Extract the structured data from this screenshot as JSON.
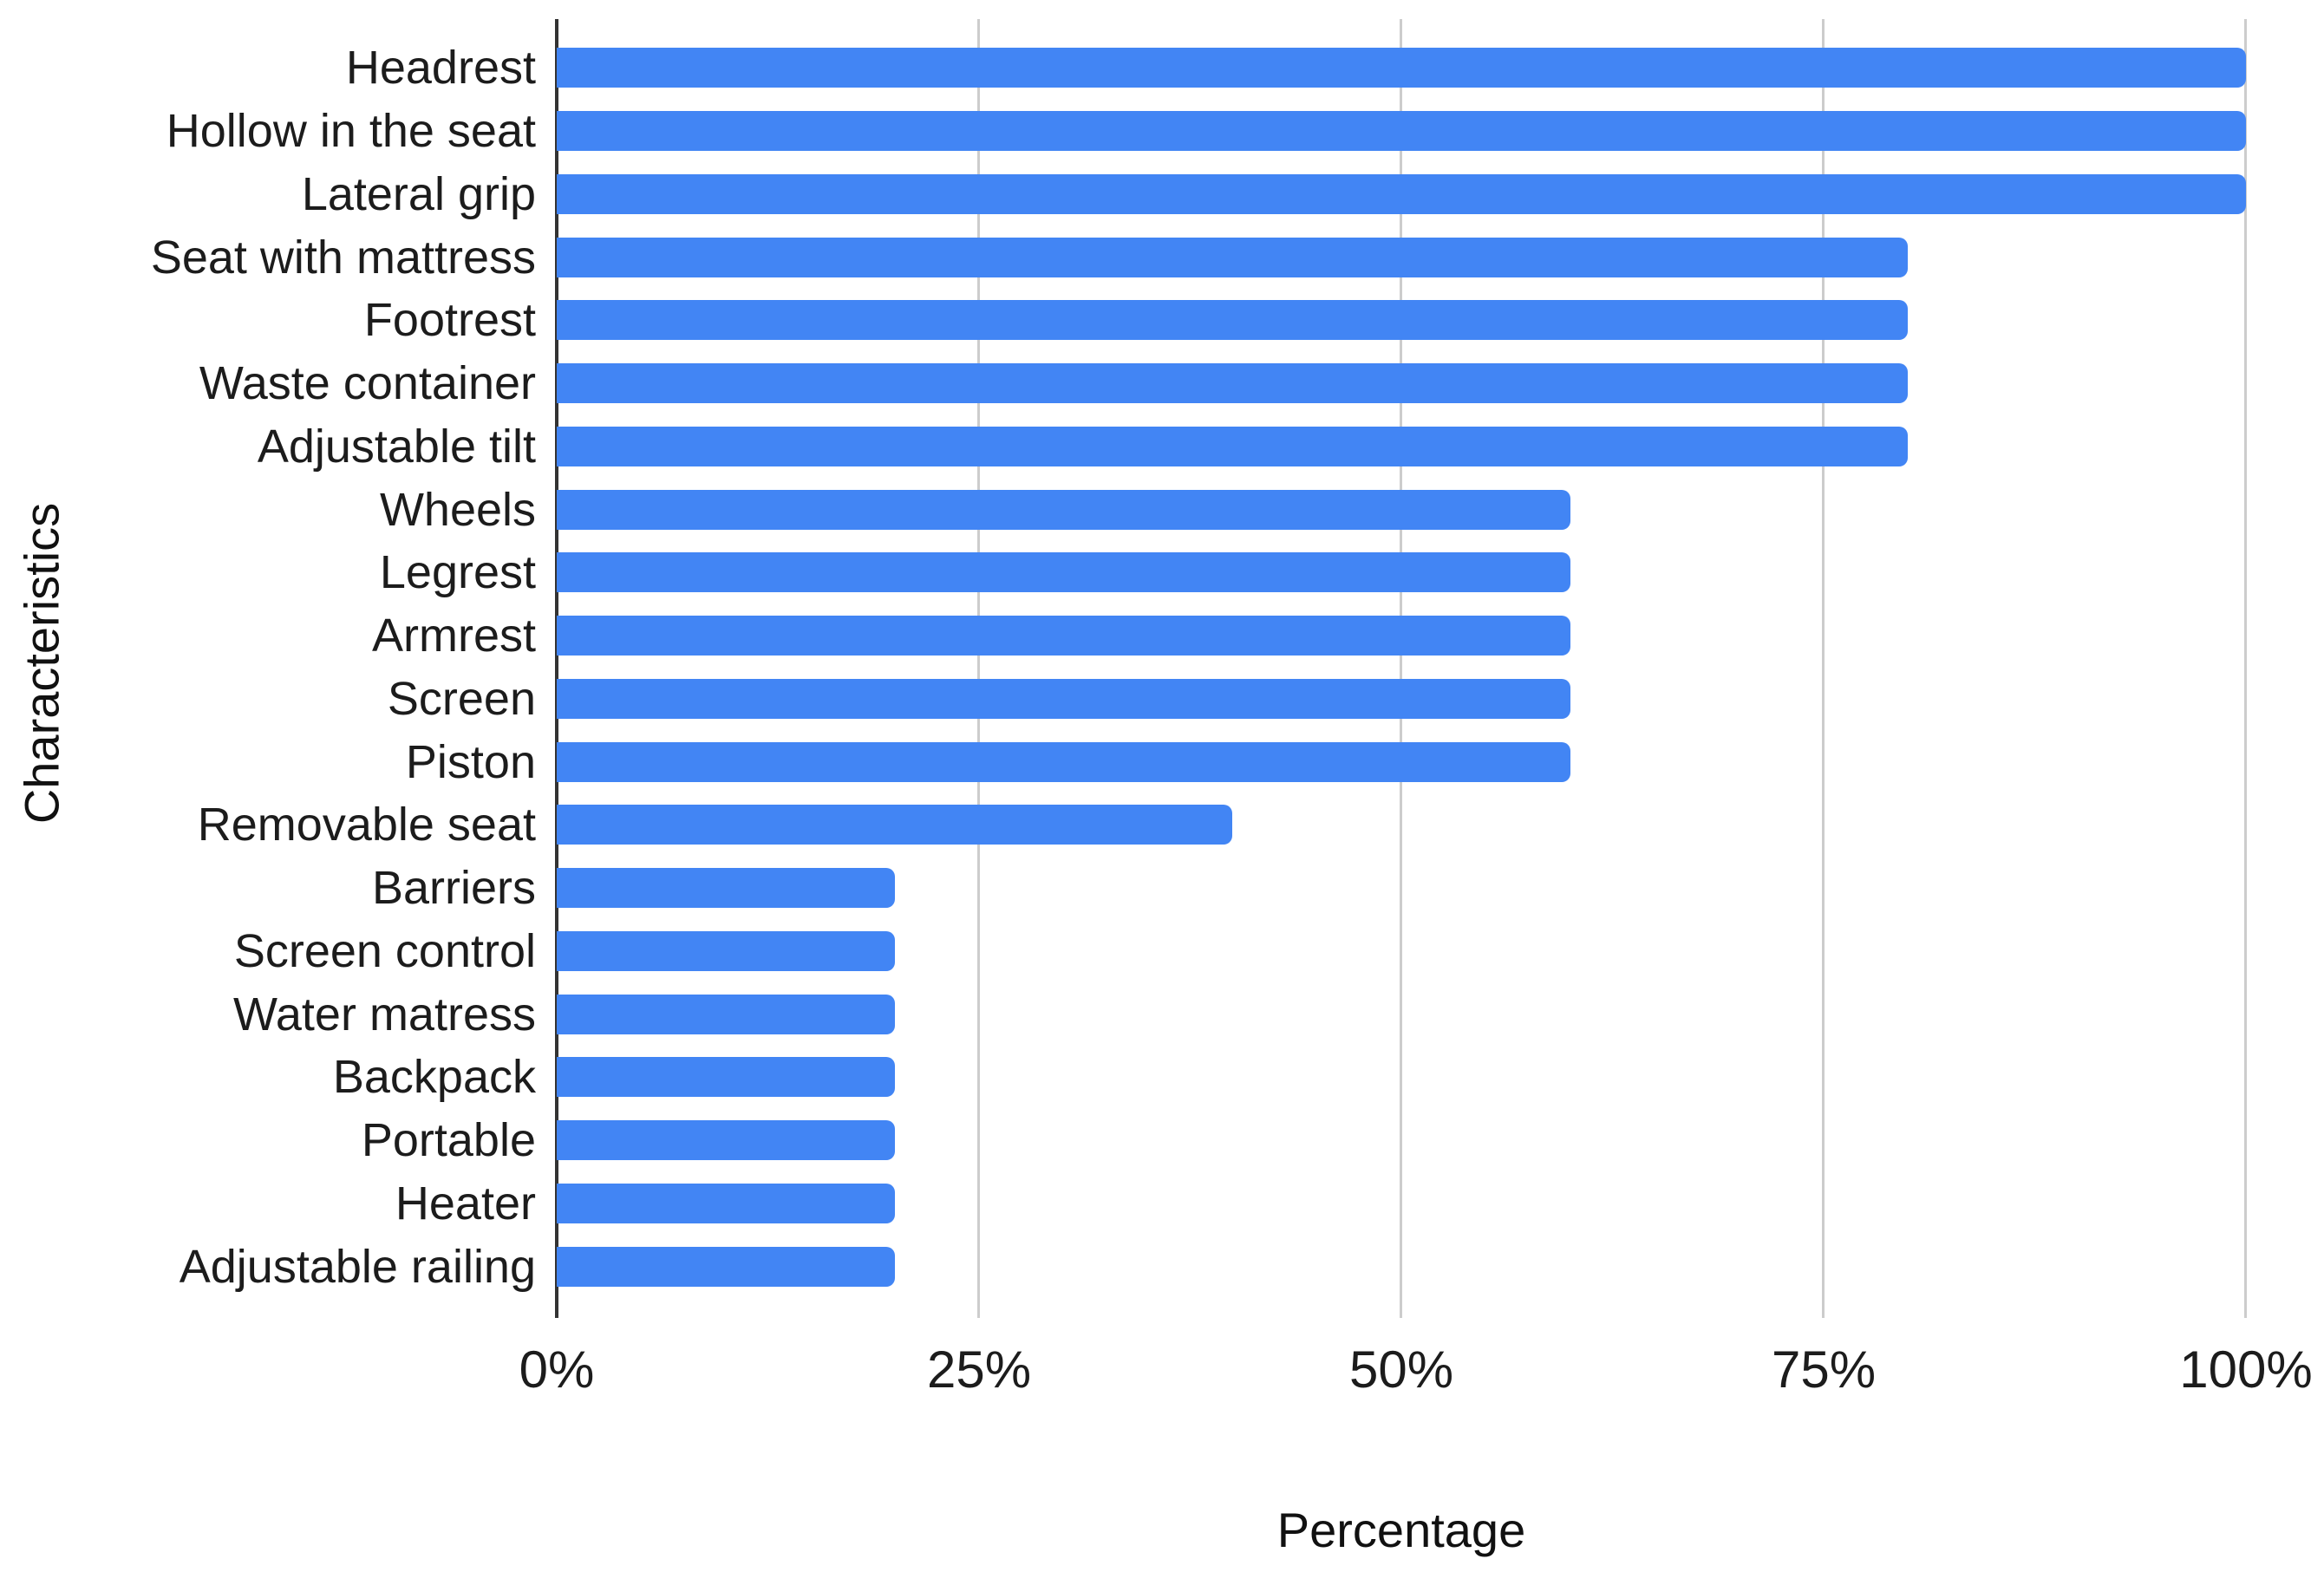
{
  "chart_data": {
    "type": "bar",
    "orientation": "horizontal",
    "title": "",
    "xlabel": "Percentage",
    "ylabel": "Characteristics",
    "categories": [
      "Headrest",
      "Hollow in the seat",
      "Lateral grip",
      "Seat with mattress",
      "Footrest",
      "Waste container",
      "Adjustable tilt",
      "Wheels",
      "Legrest",
      "Armrest",
      "Screen",
      "Piston",
      "Removable seat",
      "Barriers",
      "Screen control",
      "Water matress",
      "Backpack",
      "Portable",
      "Heater",
      "Adjustable railing"
    ],
    "values": [
      100,
      100,
      100,
      80,
      80,
      80,
      80,
      60,
      60,
      60,
      60,
      60,
      40,
      20,
      20,
      20,
      20,
      20,
      20,
      20
    ],
    "x_ticks": [
      {
        "label": "0%",
        "value": 0
      },
      {
        "label": "25%",
        "value": 25
      },
      {
        "label": "50%",
        "value": 50
      },
      {
        "label": "75%",
        "value": 75
      },
      {
        "label": "100%",
        "value": 100
      }
    ],
    "xlim": [
      0,
      100
    ],
    "grid": "vertical-only",
    "legend": "none",
    "bar_color": "#4285f4",
    "gridline_color": "#cccccc",
    "axis_line_color": "#333333",
    "text_color": "#1c1c1c"
  }
}
